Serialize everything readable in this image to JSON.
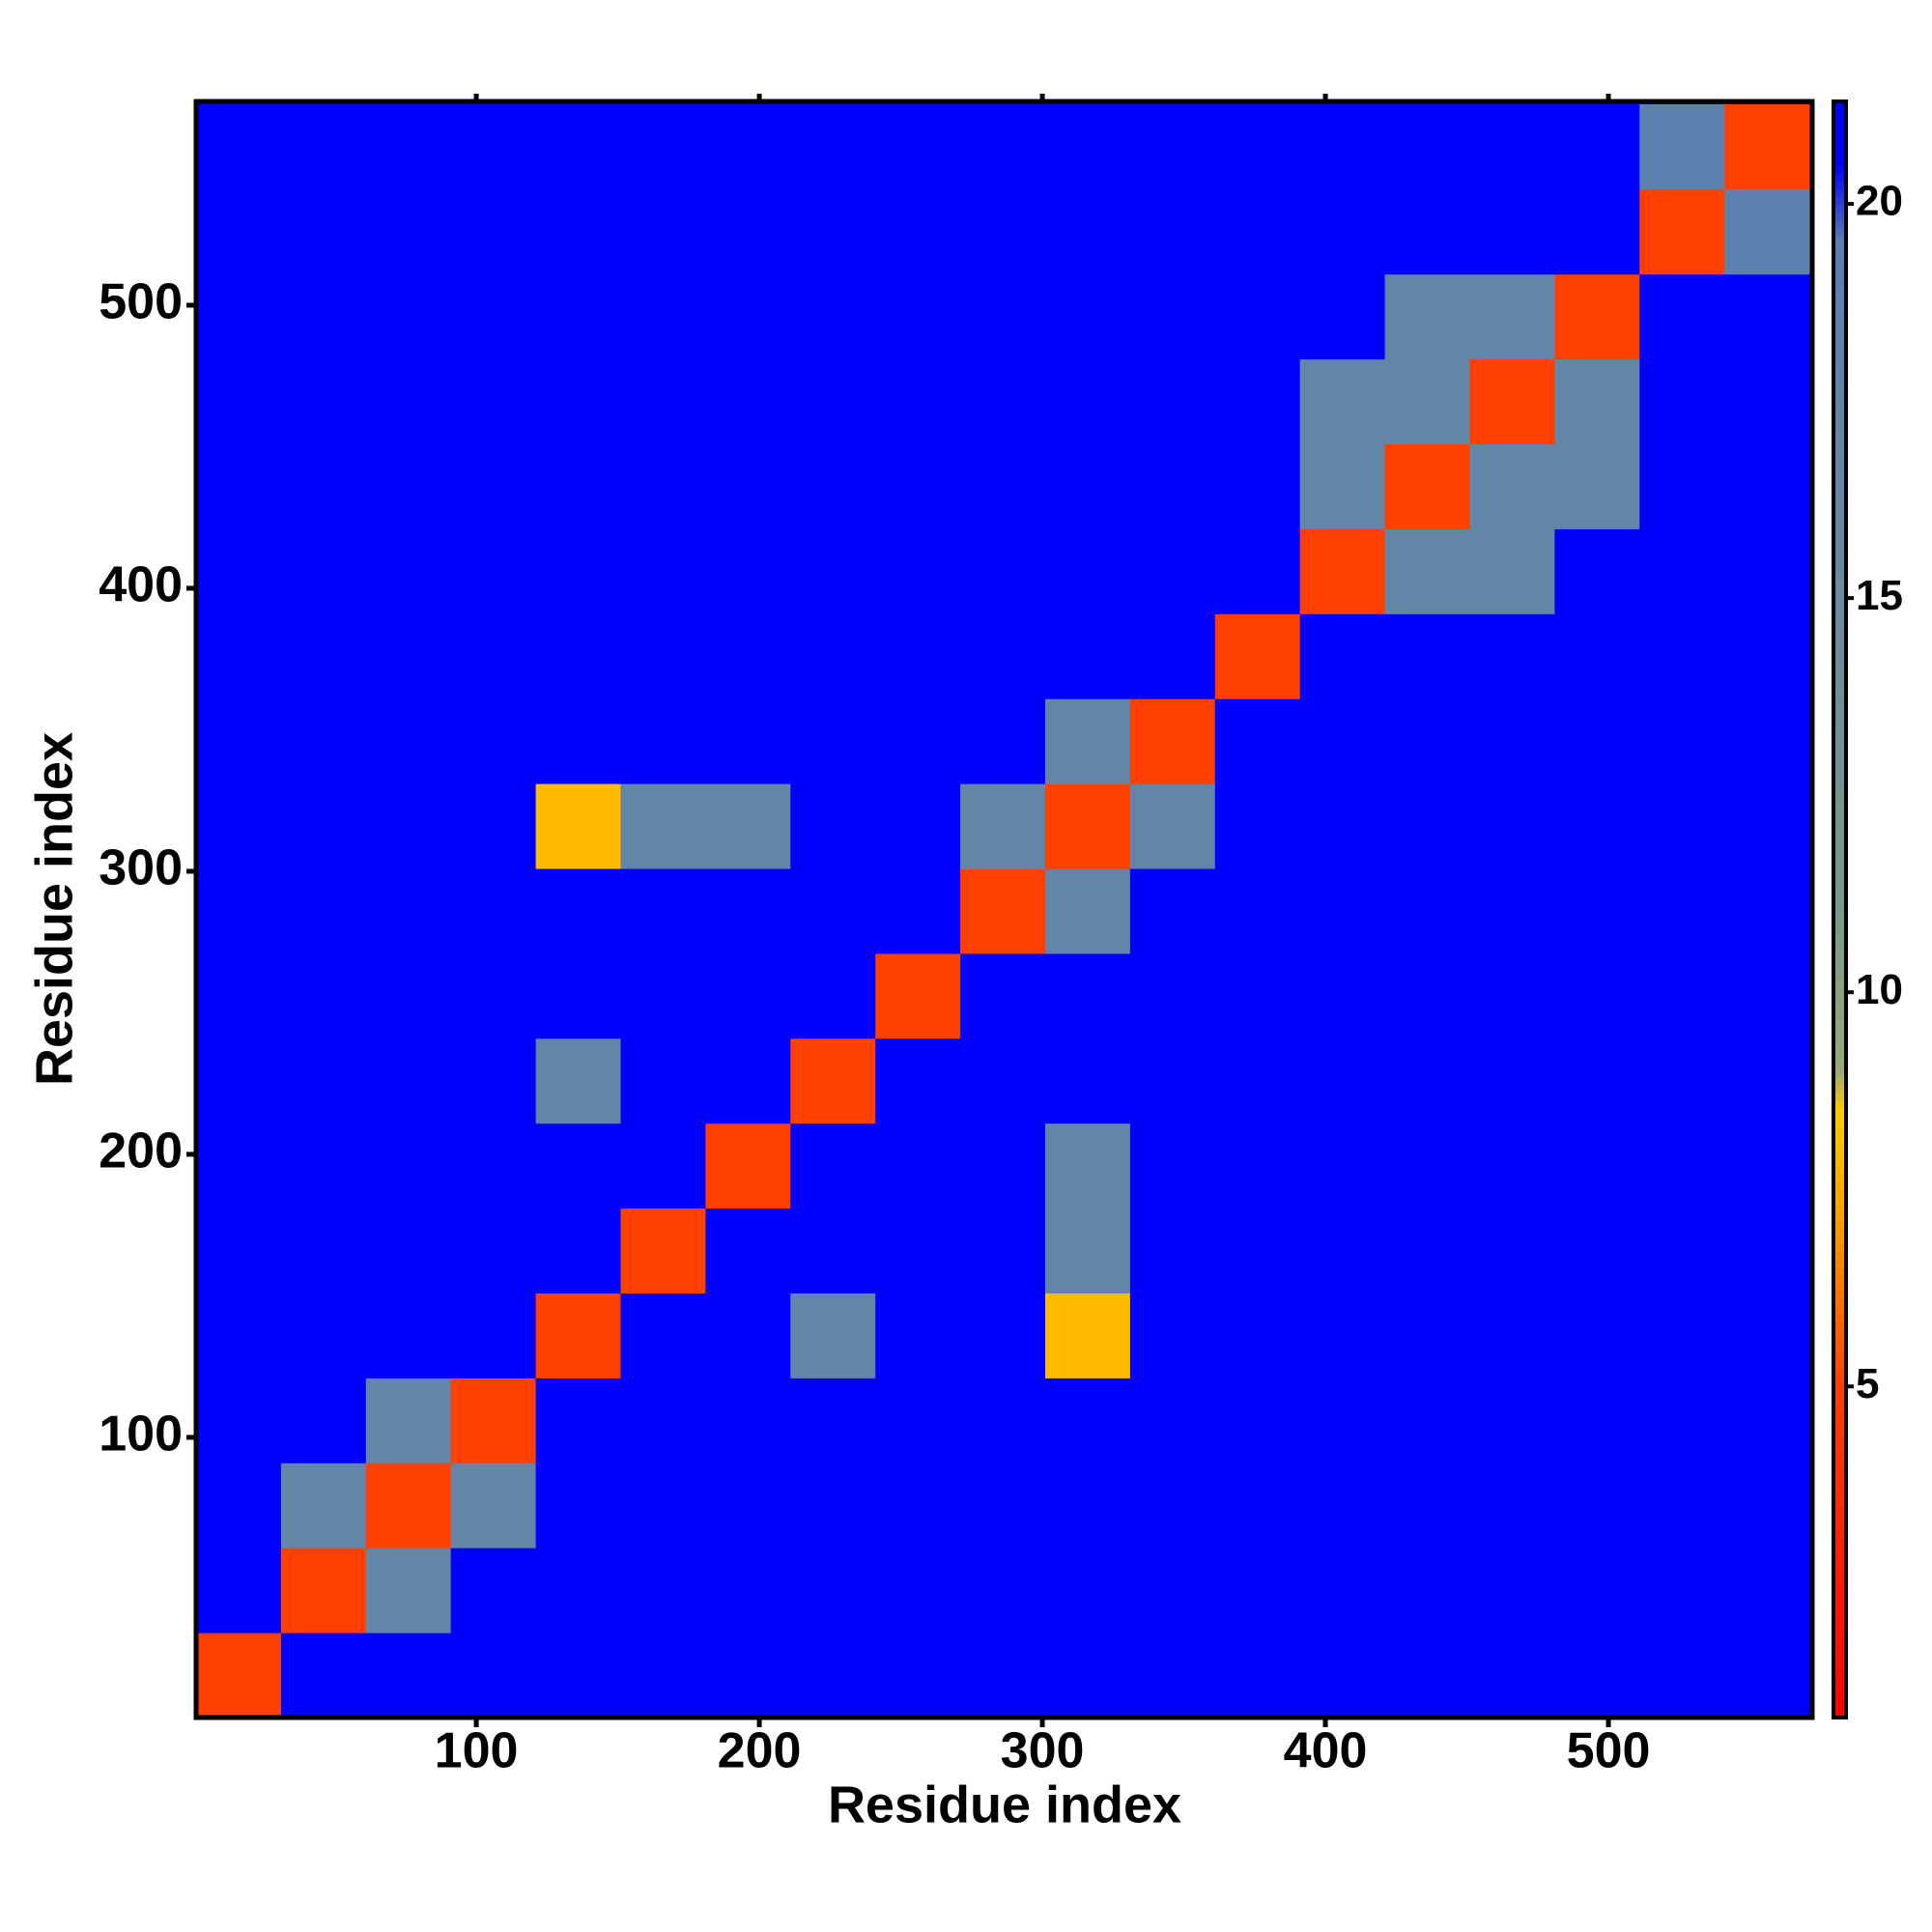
{
  "chart_data": {
    "type": "heatmap",
    "x_label": "Residue index",
    "y_label": "Residue index",
    "x_edges": [
      1,
      31,
      61,
      91,
      121,
      151,
      181,
      211,
      241,
      271,
      301,
      331,
      361,
      391,
      421,
      451,
      481,
      511,
      541,
      571
    ],
    "y_edges": [
      1,
      31,
      61,
      91,
      121,
      151,
      181,
      211,
      241,
      271,
      301,
      331,
      361,
      391,
      421,
      451,
      481,
      511,
      541,
      571
    ],
    "z": [
      [
        5,
        21,
        21,
        21,
        21,
        21,
        21,
        21,
        21,
        21,
        21,
        21,
        21,
        21,
        21,
        21,
        21,
        21,
        21
      ],
      [
        21,
        5,
        17,
        21,
        21,
        21,
        21,
        21,
        21,
        21,
        21,
        21,
        21,
        21,
        21,
        21,
        21,
        21,
        21
      ],
      [
        21,
        17,
        5,
        17,
        21,
        21,
        21,
        21,
        21,
        21,
        21,
        21,
        21,
        21,
        21,
        21,
        21,
        21,
        21
      ],
      [
        21,
        21,
        17,
        5,
        21,
        21,
        21,
        21,
        21,
        21,
        21,
        21,
        21,
        21,
        21,
        21,
        21,
        21,
        21
      ],
      [
        21,
        21,
        21,
        21,
        5,
        21,
        21,
        17,
        21,
        21,
        8,
        21,
        21,
        21,
        21,
        21,
        21,
        21,
        21
      ],
      [
        21,
        21,
        21,
        21,
        21,
        5,
        21,
        21,
        21,
        21,
        17,
        21,
        21,
        21,
        21,
        21,
        21,
        21,
        21
      ],
      [
        21,
        21,
        21,
        21,
        21,
        21,
        5,
        21,
        21,
        21,
        17,
        21,
        21,
        21,
        21,
        21,
        21,
        21,
        21
      ],
      [
        21,
        21,
        21,
        21,
        17,
        21,
        21,
        5,
        21,
        21,
        21,
        21,
        21,
        21,
        21,
        21,
        21,
        21,
        21
      ],
      [
        21,
        21,
        21,
        21,
        21,
        21,
        21,
        21,
        5,
        21,
        21,
        21,
        21,
        21,
        21,
        21,
        21,
        21,
        21
      ],
      [
        21,
        21,
        21,
        21,
        21,
        21,
        21,
        21,
        21,
        5,
        17,
        21,
        21,
        21,
        21,
        21,
        21,
        21,
        21
      ],
      [
        21,
        21,
        21,
        21,
        8,
        17,
        17,
        21,
        21,
        17,
        5,
        17,
        21,
        21,
        21,
        21,
        21,
        21,
        21
      ],
      [
        21,
        21,
        21,
        21,
        21,
        21,
        21,
        21,
        21,
        21,
        17,
        5,
        21,
        21,
        21,
        21,
        21,
        21,
        21
      ],
      [
        21,
        21,
        21,
        21,
        21,
        21,
        21,
        21,
        21,
        21,
        21,
        21,
        5,
        21,
        21,
        21,
        21,
        21,
        21
      ],
      [
        21,
        21,
        21,
        21,
        21,
        21,
        21,
        21,
        21,
        21,
        21,
        21,
        21,
        5,
        17,
        17,
        21,
        21,
        21
      ],
      [
        21,
        21,
        21,
        21,
        21,
        21,
        21,
        21,
        21,
        21,
        21,
        21,
        21,
        17,
        5,
        17,
        17,
        21,
        21
      ],
      [
        21,
        21,
        21,
        21,
        21,
        21,
        21,
        21,
        21,
        21,
        21,
        21,
        21,
        17,
        17,
        5,
        17,
        21,
        21
      ],
      [
        21,
        21,
        21,
        21,
        21,
        21,
        21,
        21,
        21,
        21,
        21,
        21,
        21,
        21,
        17,
        17,
        5,
        21,
        21
      ],
      [
        21,
        21,
        21,
        21,
        21,
        21,
        21,
        21,
        21,
        21,
        21,
        21,
        21,
        21,
        21,
        21,
        21,
        5,
        19
      ],
      [
        21,
        21,
        21,
        21,
        21,
        21,
        21,
        21,
        21,
        21,
        21,
        21,
        21,
        21,
        21,
        21,
        21,
        19,
        5
      ]
    ],
    "xlim": [
      1,
      572
    ],
    "ylim": [
      1,
      572
    ],
    "xticks": [
      100,
      200,
      300,
      400,
      500
    ],
    "yticks": [
      100,
      200,
      300,
      400,
      500
    ],
    "zlim": [
      0.8,
      21.3
    ],
    "zticks": [
      5,
      10,
      15,
      20
    ],
    "colormap": [
      [
        0.8,
        "#ff0000"
      ],
      [
        5,
        "#ff4000"
      ],
      [
        7,
        "#ff9900"
      ],
      [
        8.5,
        "#ffcc00"
      ],
      [
        9,
        "#99aa77"
      ],
      [
        11,
        "#7a9a88"
      ],
      [
        15,
        "#6a8aa0"
      ],
      [
        19.5,
        "#5a80b0"
      ],
      [
        20.5,
        "#0000ff"
      ],
      [
        21.3,
        "#0000ff"
      ]
    ]
  }
}
